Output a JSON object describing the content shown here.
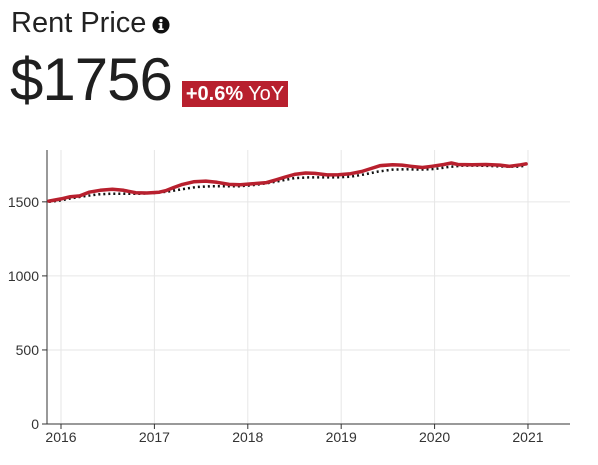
{
  "header": {
    "title": "Rent Price",
    "info_icon": "info-circle-icon",
    "price": "$1756",
    "yoy_value": "+0.6%",
    "yoy_suffix": "YoY"
  },
  "colors": {
    "accent": "#b8202e",
    "text": "#222222",
    "grid": "#e6e6e6",
    "axis": "#333333",
    "dotted_series": "#111111"
  },
  "chart_data": {
    "type": "line",
    "title": "",
    "xlabel": "",
    "ylabel": "",
    "xlim": [
      2015.85,
      2021.45
    ],
    "ylim": [
      0,
      1850
    ],
    "x_ticks": [
      2016,
      2017,
      2018,
      2019,
      2020,
      2021
    ],
    "x_tick_labels": [
      "2016",
      "2017",
      "2018",
      "2019",
      "2020",
      "2021"
    ],
    "y_ticks": [
      0,
      500,
      1000,
      1500
    ],
    "y_tick_labels": [
      "0",
      "500",
      "1000",
      "1500"
    ],
    "grid": true,
    "legend": "none",
    "series": [
      {
        "style": "solid",
        "color": "#b8202e",
        "points": [
          [
            2015.87,
            1505
          ],
          [
            2016.0,
            1520
          ],
          [
            2016.1,
            1535
          ],
          [
            2016.2,
            1540
          ],
          [
            2016.3,
            1565
          ],
          [
            2016.42,
            1578
          ],
          [
            2016.55,
            1585
          ],
          [
            2016.67,
            1578
          ],
          [
            2016.8,
            1562
          ],
          [
            2016.92,
            1560
          ],
          [
            2017.05,
            1565
          ],
          [
            2017.12,
            1575
          ],
          [
            2017.2,
            1595
          ],
          [
            2017.3,
            1618
          ],
          [
            2017.42,
            1635
          ],
          [
            2017.55,
            1640
          ],
          [
            2017.67,
            1632
          ],
          [
            2017.8,
            1618
          ],
          [
            2017.92,
            1615
          ],
          [
            2018.05,
            1622
          ],
          [
            2018.2,
            1630
          ],
          [
            2018.3,
            1648
          ],
          [
            2018.4,
            1668
          ],
          [
            2018.5,
            1685
          ],
          [
            2018.62,
            1695
          ],
          [
            2018.72,
            1692
          ],
          [
            2018.85,
            1682
          ],
          [
            2018.97,
            1683
          ],
          [
            2019.1,
            1690
          ],
          [
            2019.22,
            1705
          ],
          [
            2019.32,
            1725
          ],
          [
            2019.42,
            1745
          ],
          [
            2019.55,
            1750
          ],
          [
            2019.65,
            1748
          ],
          [
            2019.75,
            1740
          ],
          [
            2019.87,
            1732
          ],
          [
            2019.97,
            1740
          ],
          [
            2020.1,
            1752
          ],
          [
            2020.18,
            1762
          ],
          [
            2020.25,
            1752
          ],
          [
            2020.4,
            1750
          ],
          [
            2020.55,
            1752
          ],
          [
            2020.7,
            1748
          ],
          [
            2020.8,
            1740
          ],
          [
            2020.92,
            1750
          ],
          [
            2020.98,
            1756
          ]
        ]
      },
      {
        "style": "dotted",
        "color": "#111111",
        "points": [
          [
            2015.87,
            1500
          ],
          [
            2016.0,
            1510
          ],
          [
            2016.12,
            1525
          ],
          [
            2016.25,
            1538
          ],
          [
            2016.4,
            1550
          ],
          [
            2016.55,
            1555
          ],
          [
            2016.7,
            1555
          ],
          [
            2016.85,
            1555
          ],
          [
            2017.0,
            1560
          ],
          [
            2017.15,
            1570
          ],
          [
            2017.3,
            1585
          ],
          [
            2017.45,
            1600
          ],
          [
            2017.6,
            1605
          ],
          [
            2017.75,
            1605
          ],
          [
            2017.9,
            1605
          ],
          [
            2018.05,
            1612
          ],
          [
            2018.2,
            1625
          ],
          [
            2018.35,
            1642
          ],
          [
            2018.5,
            1660
          ],
          [
            2018.65,
            1665
          ],
          [
            2018.8,
            1665
          ],
          [
            2018.95,
            1665
          ],
          [
            2019.1,
            1670
          ],
          [
            2019.25,
            1685
          ],
          [
            2019.4,
            1705
          ],
          [
            2019.55,
            1718
          ],
          [
            2019.7,
            1720
          ],
          [
            2019.85,
            1718
          ],
          [
            2020.0,
            1722
          ],
          [
            2020.15,
            1735
          ],
          [
            2020.3,
            1745
          ],
          [
            2020.45,
            1745
          ],
          [
            2020.6,
            1742
          ],
          [
            2020.75,
            1738
          ],
          [
            2020.9,
            1738
          ],
          [
            2020.98,
            1745
          ]
        ]
      }
    ]
  }
}
